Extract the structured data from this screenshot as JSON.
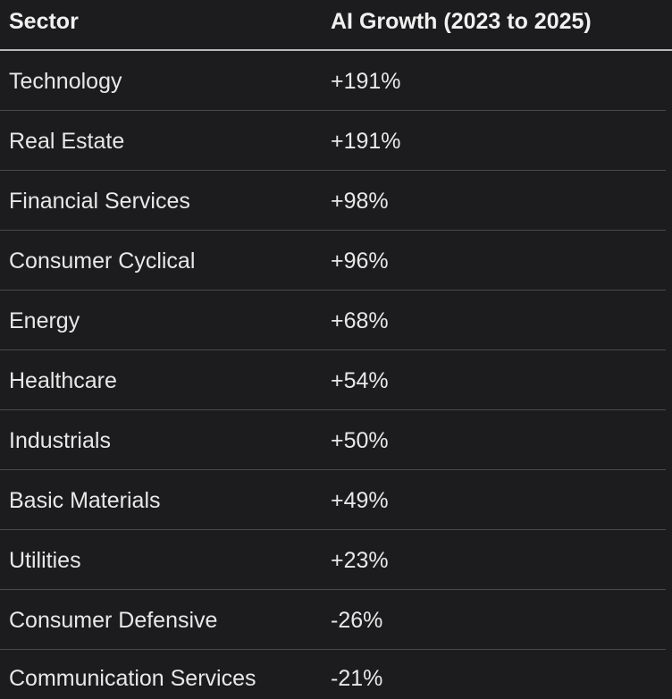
{
  "table": {
    "headers": [
      "Sector",
      "AI Growth (2023 to 2025)"
    ],
    "rows": [
      {
        "sector": "Technology",
        "growth": "+191%"
      },
      {
        "sector": "Real Estate",
        "growth": "+191%"
      },
      {
        "sector": "Financial Services",
        "growth": "+98%"
      },
      {
        "sector": "Consumer Cyclical",
        "growth": "+96%"
      },
      {
        "sector": "Energy",
        "growth": "+68%"
      },
      {
        "sector": "Healthcare",
        "growth": "+54%"
      },
      {
        "sector": "Industrials",
        "growth": "+50%"
      },
      {
        "sector": "Basic Materials",
        "growth": "+49%"
      },
      {
        "sector": "Utilities",
        "growth": "+23%"
      },
      {
        "sector": "Consumer Defensive",
        "growth": "-26%"
      },
      {
        "sector": "Communication Services",
        "growth": "-21%"
      }
    ]
  }
}
